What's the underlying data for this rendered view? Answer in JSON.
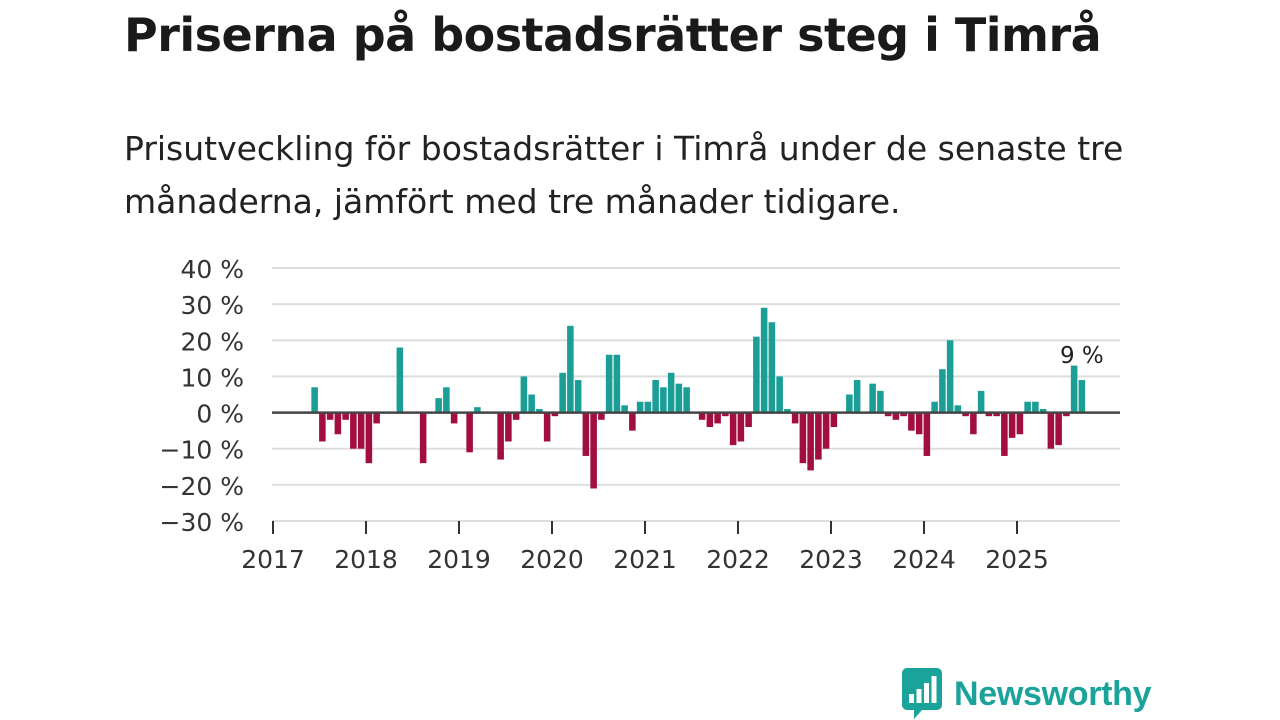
{
  "chart_data": {
    "type": "bar",
    "title": "Priserna på bostadsrätter steg i Timrå",
    "subtitle": "Prisutveckling för bostadsrätter i Timrå under de senaste tre månaderna, jämfört med tre månader tidigare.",
    "xlabel": "",
    "ylabel": "",
    "ylim": [
      -30,
      40
    ],
    "yticks": [
      40,
      30,
      20,
      10,
      0,
      -10,
      -20,
      -30
    ],
    "ytick_labels": [
      "40 %",
      "30 %",
      "20 %",
      "10 %",
      "0 %",
      "−10 %",
      "−20 %",
      "−30 %"
    ],
    "xtick_labels": [
      "2017",
      "2018",
      "2019",
      "2020",
      "2021",
      "2022",
      "2023",
      "2024",
      "2025"
    ],
    "start_year": 2017,
    "grid": true,
    "annotation": {
      "text": "9 %",
      "year": 2025,
      "month": 9
    },
    "colors": {
      "positive": "#1a9e96",
      "negative": "#a10e3f",
      "grid": "#dddddd",
      "zero": "#444444"
    },
    "series": [
      {
        "name": "Prisutveckling",
        "points": [
          {
            "year": 2017,
            "month": 6,
            "value": 7
          },
          {
            "year": 2017,
            "month": 7,
            "value": -8
          },
          {
            "year": 2017,
            "month": 8,
            "value": -2
          },
          {
            "year": 2017,
            "month": 9,
            "value": -6
          },
          {
            "year": 2017,
            "month": 10,
            "value": -2
          },
          {
            "year": 2017,
            "month": 11,
            "value": -10
          },
          {
            "year": 2017,
            "month": 12,
            "value": -10
          },
          {
            "year": 2018,
            "month": 1,
            "value": -14
          },
          {
            "year": 2018,
            "month": 2,
            "value": -3
          },
          {
            "year": 2018,
            "month": 5,
            "value": 18
          },
          {
            "year": 2018,
            "month": 8,
            "value": -14
          },
          {
            "year": 2018,
            "month": 10,
            "value": 4
          },
          {
            "year": 2018,
            "month": 11,
            "value": 7
          },
          {
            "year": 2018,
            "month": 12,
            "value": -3
          },
          {
            "year": 2019,
            "month": 2,
            "value": -11
          },
          {
            "year": 2019,
            "month": 3,
            "value": 1.5
          },
          {
            "year": 2019,
            "month": 6,
            "value": -13
          },
          {
            "year": 2019,
            "month": 7,
            "value": -8
          },
          {
            "year": 2019,
            "month": 8,
            "value": -2
          },
          {
            "year": 2019,
            "month": 9,
            "value": 10
          },
          {
            "year": 2019,
            "month": 10,
            "value": 5
          },
          {
            "year": 2019,
            "month": 11,
            "value": 1
          },
          {
            "year": 2019,
            "month": 12,
            "value": -8
          },
          {
            "year": 2020,
            "month": 1,
            "value": -1
          },
          {
            "year": 2020,
            "month": 2,
            "value": 11
          },
          {
            "year": 2020,
            "month": 3,
            "value": 24
          },
          {
            "year": 2020,
            "month": 4,
            "value": 9
          },
          {
            "year": 2020,
            "month": 5,
            "value": -12
          },
          {
            "year": 2020,
            "month": 6,
            "value": -21
          },
          {
            "year": 2020,
            "month": 7,
            "value": -2
          },
          {
            "year": 2020,
            "month": 8,
            "value": 16
          },
          {
            "year": 2020,
            "month": 9,
            "value": 16
          },
          {
            "year": 2020,
            "month": 10,
            "value": 2
          },
          {
            "year": 2020,
            "month": 11,
            "value": -5
          },
          {
            "year": 2020,
            "month": 12,
            "value": 3
          },
          {
            "year": 2021,
            "month": 1,
            "value": 3
          },
          {
            "year": 2021,
            "month": 2,
            "value": 9
          },
          {
            "year": 2021,
            "month": 3,
            "value": 7
          },
          {
            "year": 2021,
            "month": 4,
            "value": 11
          },
          {
            "year": 2021,
            "month": 5,
            "value": 8
          },
          {
            "year": 2021,
            "month": 6,
            "value": 7
          },
          {
            "year": 2021,
            "month": 8,
            "value": -2
          },
          {
            "year": 2021,
            "month": 9,
            "value": -4
          },
          {
            "year": 2021,
            "month": 10,
            "value": -3
          },
          {
            "year": 2021,
            "month": 11,
            "value": -1
          },
          {
            "year": 2021,
            "month": 12,
            "value": -9
          },
          {
            "year": 2022,
            "month": 1,
            "value": -8
          },
          {
            "year": 2022,
            "month": 2,
            "value": -4
          },
          {
            "year": 2022,
            "month": 3,
            "value": 21
          },
          {
            "year": 2022,
            "month": 4,
            "value": 29
          },
          {
            "year": 2022,
            "month": 5,
            "value": 25
          },
          {
            "year": 2022,
            "month": 6,
            "value": 10
          },
          {
            "year": 2022,
            "month": 7,
            "value": 1
          },
          {
            "year": 2022,
            "month": 8,
            "value": -3
          },
          {
            "year": 2022,
            "month": 9,
            "value": -14
          },
          {
            "year": 2022,
            "month": 10,
            "value": -16
          },
          {
            "year": 2022,
            "month": 11,
            "value": -13
          },
          {
            "year": 2022,
            "month": 12,
            "value": -10
          },
          {
            "year": 2023,
            "month": 1,
            "value": -4
          },
          {
            "year": 2023,
            "month": 3,
            "value": 5
          },
          {
            "year": 2023,
            "month": 4,
            "value": 9
          },
          {
            "year": 2023,
            "month": 6,
            "value": 8
          },
          {
            "year": 2023,
            "month": 7,
            "value": 6
          },
          {
            "year": 2023,
            "month": 8,
            "value": -1
          },
          {
            "year": 2023,
            "month": 9,
            "value": -2
          },
          {
            "year": 2023,
            "month": 10,
            "value": -1
          },
          {
            "year": 2023,
            "month": 11,
            "value": -5
          },
          {
            "year": 2023,
            "month": 12,
            "value": -6
          },
          {
            "year": 2024,
            "month": 1,
            "value": -12
          },
          {
            "year": 2024,
            "month": 2,
            "value": 3
          },
          {
            "year": 2024,
            "month": 3,
            "value": 12
          },
          {
            "year": 2024,
            "month": 4,
            "value": 20
          },
          {
            "year": 2024,
            "month": 5,
            "value": 2
          },
          {
            "year": 2024,
            "month": 6,
            "value": -1
          },
          {
            "year": 2024,
            "month": 7,
            "value": -6
          },
          {
            "year": 2024,
            "month": 8,
            "value": 6
          },
          {
            "year": 2024,
            "month": 9,
            "value": -1
          },
          {
            "year": 2024,
            "month": 10,
            "value": -1
          },
          {
            "year": 2024,
            "month": 11,
            "value": -12
          },
          {
            "year": 2024,
            "month": 12,
            "value": -7
          },
          {
            "year": 2025,
            "month": 1,
            "value": -6
          },
          {
            "year": 2025,
            "month": 2,
            "value": 3
          },
          {
            "year": 2025,
            "month": 3,
            "value": 3
          },
          {
            "year": 2025,
            "month": 4,
            "value": 1
          },
          {
            "year": 2025,
            "month": 5,
            "value": -10
          },
          {
            "year": 2025,
            "month": 6,
            "value": -9
          },
          {
            "year": 2025,
            "month": 7,
            "value": -1
          },
          {
            "year": 2025,
            "month": 8,
            "value": 13
          },
          {
            "year": 2025,
            "month": 9,
            "value": 9
          }
        ]
      }
    ]
  },
  "logo": {
    "text": "Newsworthy",
    "icon": "newsworthy-logo-icon",
    "color": "#1aa39a"
  }
}
